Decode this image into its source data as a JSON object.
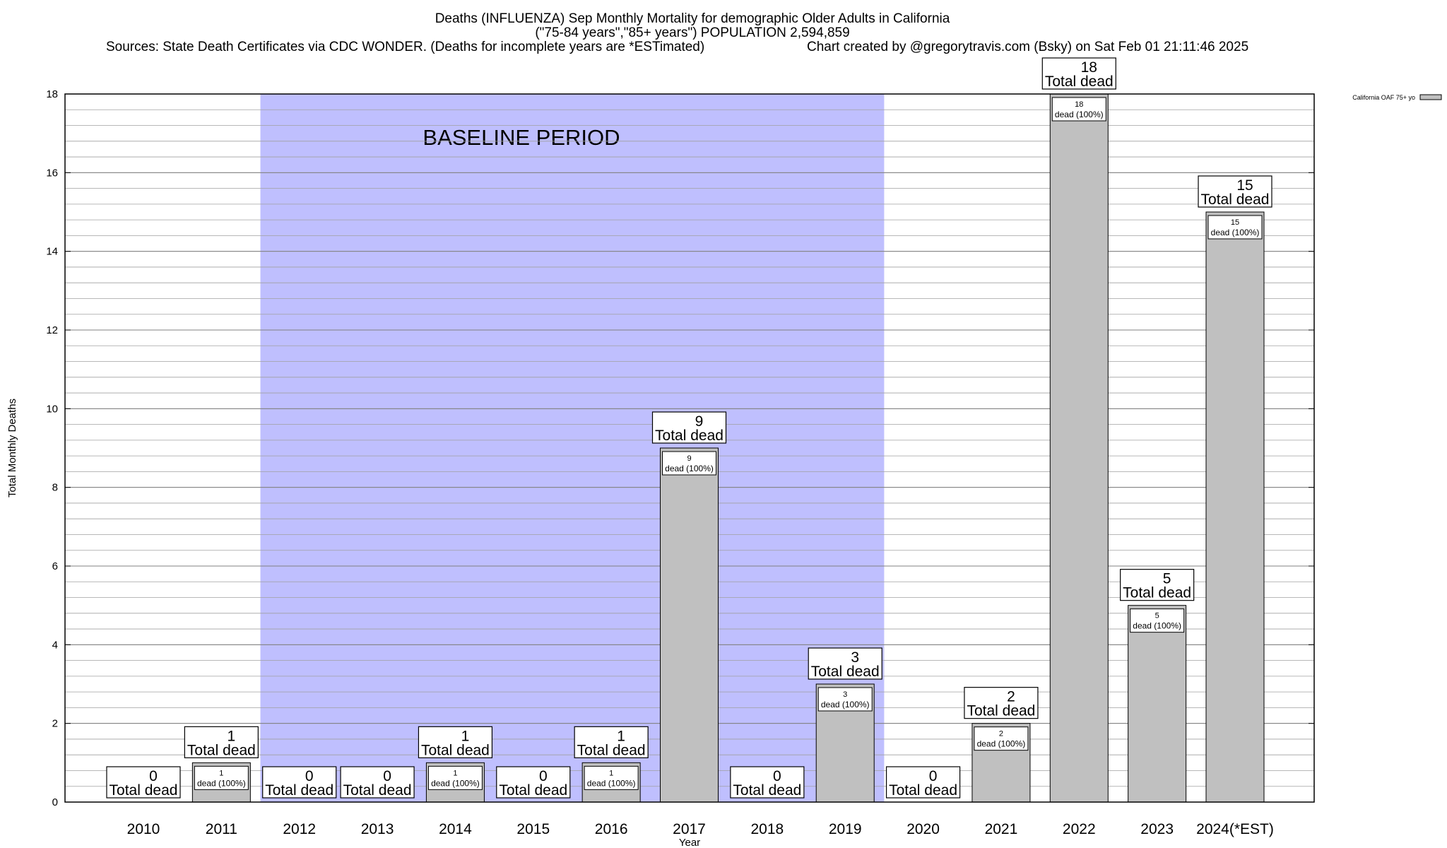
{
  "header": {
    "title_line1": "Deaths (INFLUENZA) Sep Monthly Mortality for demographic Older Adults in California",
    "title_line2": "(\"75-84 years\",\"85+ years\") POPULATION 2,594,859",
    "sources": "Sources: State Death Certificates via CDC WONDER. (Deaths for incomplete years are *ESTimated)",
    "credit": "Chart created by @gregorytravis.com (Bsky) on Sat Feb 01 21:11:46 2025"
  },
  "chart_data": {
    "type": "bar",
    "title": "Deaths (INFLUENZA) Sep Monthly Mortality for demographic Older Adults in California",
    "xlabel": "Year",
    "ylabel": "Total Monthly Deaths",
    "ylim": [
      0,
      18
    ],
    "yticks": [
      0,
      2,
      4,
      6,
      8,
      10,
      12,
      14,
      16,
      18
    ],
    "grid": "horizontal minor lines",
    "legend_position": "top-right",
    "categories": [
      "2010",
      "2011",
      "2012",
      "2013",
      "2014",
      "2015",
      "2016",
      "2017",
      "2018",
      "2019",
      "2020",
      "2021",
      "2022",
      "2023",
      "2024(*EST)"
    ],
    "series": [
      {
        "name": "California OAF 75+ yo",
        "color": "#c0c0c0",
        "values": [
          0,
          1,
          0,
          0,
          1,
          0,
          1,
          9,
          0,
          3,
          0,
          2,
          18,
          5,
          15
        ]
      }
    ],
    "total_label": "Total dead",
    "inner_label_suffix": "dead (100%)",
    "baseline": {
      "label": "BASELINE PERIOD",
      "from_category": "2012",
      "to_category": "2019",
      "color": "#bfbffe"
    }
  }
}
